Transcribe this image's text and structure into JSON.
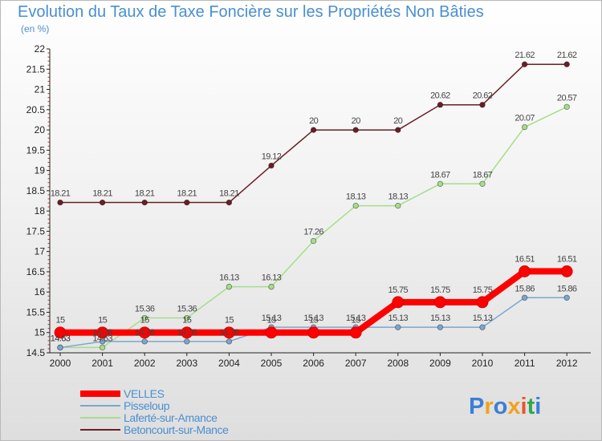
{
  "chart_data": {
    "type": "line",
    "title": "Evolution du Taux de Taxe Foncière sur les Propriétés Non Bâties",
    "ylabel": "(en %)",
    "xlabel": "",
    "ylim": [
      14.5,
      22
    ],
    "yticks": [
      14.5,
      15,
      15.5,
      16,
      16.5,
      17,
      17.5,
      18,
      18.5,
      19,
      19.5,
      20,
      20.5,
      21,
      21.5,
      22
    ],
    "categories": [
      "2000",
      "2001",
      "2002",
      "2003",
      "2004",
      "2005",
      "2006",
      "2007",
      "2008",
      "2009",
      "2010",
      "2011",
      "2012"
    ],
    "legend_position": "bottom-left",
    "grid": false,
    "series": [
      {
        "name": "Betoncourt-sur-Mance",
        "color": "#6b1e26",
        "width": 1.5,
        "values": [
          18.21,
          18.21,
          18.21,
          18.21,
          18.21,
          19.12,
          20,
          20,
          20,
          20.62,
          20.62,
          21.62,
          21.62
        ],
        "labels": [
          "18.21",
          "18.21",
          "18.21",
          "18.21",
          "18.21",
          "19.12",
          "20",
          "20",
          "20",
          "20.62",
          "20.62",
          "21.62",
          "21.62"
        ]
      },
      {
        "name": "Laferté-sur-Amance",
        "color": "#a6dd8a",
        "width": 1.5,
        "values": [
          14.63,
          14.63,
          15.36,
          15.36,
          16.13,
          16.13,
          17.26,
          18.13,
          18.13,
          18.67,
          18.67,
          20.07,
          20.57
        ],
        "labels": [
          "14.63",
          "14.63",
          "15.36",
          "15.36",
          "16.13",
          "16.13",
          "17.26",
          "18.13",
          "18.13",
          "18.67",
          "18.67",
          "20.07",
          "20.57"
        ]
      },
      {
        "name": "Pisseloup",
        "color": "#7ba6cf",
        "width": 1.5,
        "values": [
          14.63,
          14.78,
          14.78,
          14.78,
          14.78,
          15.13,
          15.13,
          15.13,
          15.13,
          15.13,
          15.13,
          15.86,
          15.86
        ],
        "labels": [
          "14.63",
          "14.78",
          "14.78",
          "14.78",
          "14.78",
          "15.13",
          "15.13",
          "15.13",
          "15.13",
          "15.13",
          "15.13",
          "15.86",
          "15.86"
        ]
      },
      {
        "name": "VELLES",
        "color": "#ff0000",
        "width": 8,
        "values": [
          15,
          15,
          15,
          15,
          15,
          15,
          15,
          15,
          15.75,
          15.75,
          15.75,
          16.51,
          16.51
        ],
        "labels": [
          "15",
          "15",
          "15",
          "15",
          "15",
          "15",
          "15",
          "15",
          "15.75",
          "15.75",
          "15.75",
          "16.51",
          "16.51"
        ]
      }
    ],
    "legend": [
      {
        "name": "VELLES",
        "color": "#ff0000",
        "thickness": 8
      },
      {
        "name": "Pisseloup",
        "color": "#7ba6cf",
        "thickness": 2
      },
      {
        "name": "Laferté-sur-Amance",
        "color": "#a6dd8a",
        "thickness": 2
      },
      {
        "name": "Betoncourt-sur-Mance",
        "color": "#6b1e26",
        "thickness": 2
      }
    ]
  },
  "logo": {
    "letters": [
      "P",
      "r",
      "o",
      "x",
      "i",
      "t",
      "i"
    ],
    "colors": [
      "#3b7fd4",
      "#f4a11d",
      "#3b7fd4",
      "#f4a11d",
      "#e9542e",
      "#2fa84f",
      "#3b7fd4"
    ]
  }
}
